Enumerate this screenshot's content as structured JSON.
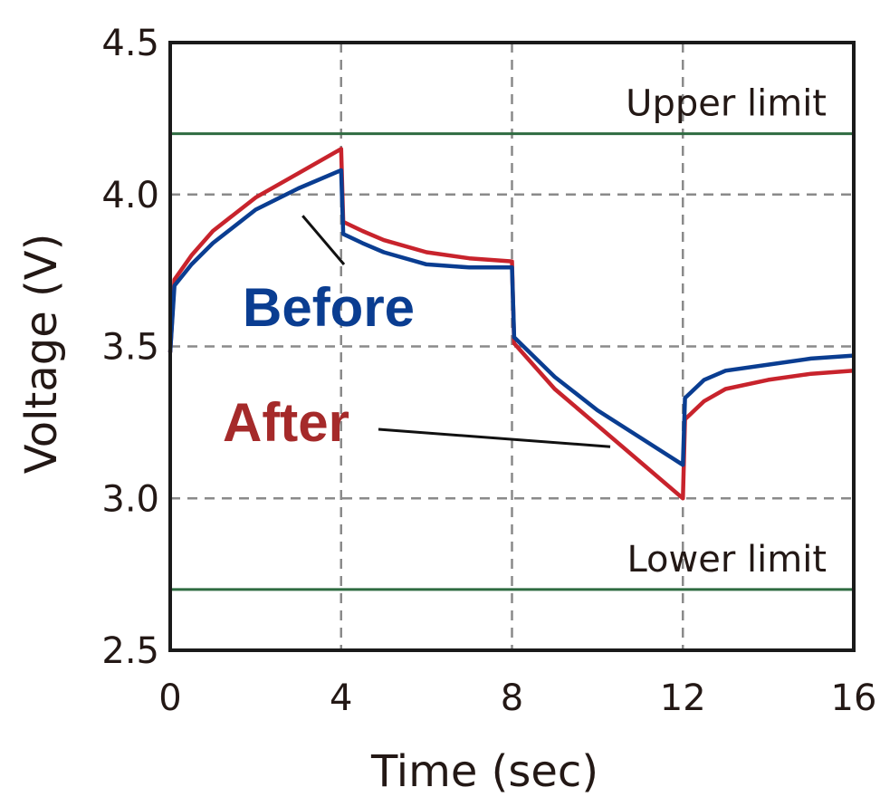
{
  "chart_data": {
    "type": "line",
    "xlabel": "Time (sec)",
    "ylabel": "Voltage (V)",
    "xlim": [
      0,
      16
    ],
    "ylim": [
      2.5,
      4.5
    ],
    "x_ticks": [
      0,
      4,
      8,
      12,
      16
    ],
    "y_ticks": [
      2.5,
      3.0,
      3.5,
      4.0,
      4.5
    ],
    "x_tick_labels": [
      "0",
      "4",
      "8",
      "12",
      "16"
    ],
    "y_tick_labels": [
      "2.5",
      "3.0",
      "3.5",
      "4.0",
      "4.5"
    ],
    "grid": "dashed at major ticks",
    "series": [
      {
        "name": "Before",
        "color": "#0a3d91",
        "points": [
          [
            0.0,
            3.48
          ],
          [
            0.1,
            3.7
          ],
          [
            0.5,
            3.77
          ],
          [
            1.0,
            3.84
          ],
          [
            2.0,
            3.95
          ],
          [
            3.0,
            4.02
          ],
          [
            4.0,
            4.08
          ],
          [
            4.05,
            3.87
          ],
          [
            4.5,
            3.84
          ],
          [
            5.0,
            3.81
          ],
          [
            6.0,
            3.77
          ],
          [
            7.0,
            3.76
          ],
          [
            8.0,
            3.76
          ],
          [
            8.05,
            3.53
          ],
          [
            9.0,
            3.4
          ],
          [
            10.0,
            3.29
          ],
          [
            11.0,
            3.2
          ],
          [
            12.0,
            3.11
          ],
          [
            12.05,
            3.33
          ],
          [
            12.5,
            3.39
          ],
          [
            13.0,
            3.42
          ],
          [
            14.0,
            3.44
          ],
          [
            15.0,
            3.46
          ],
          [
            16.0,
            3.47
          ]
        ]
      },
      {
        "name": "After",
        "color": "#c8232c",
        "points": [
          [
            0.0,
            3.48
          ],
          [
            0.1,
            3.72
          ],
          [
            0.5,
            3.8
          ],
          [
            1.0,
            3.88
          ],
          [
            2.0,
            3.99
          ],
          [
            3.0,
            4.07
          ],
          [
            4.0,
            4.15
          ],
          [
            4.05,
            3.91
          ],
          [
            4.5,
            3.88
          ],
          [
            5.0,
            3.85
          ],
          [
            6.0,
            3.81
          ],
          [
            7.0,
            3.79
          ],
          [
            8.0,
            3.78
          ],
          [
            8.05,
            3.51
          ],
          [
            9.0,
            3.36
          ],
          [
            10.0,
            3.24
          ],
          [
            11.0,
            3.12
          ],
          [
            12.0,
            3.0
          ],
          [
            12.05,
            3.26
          ],
          [
            12.5,
            3.32
          ],
          [
            13.0,
            3.36
          ],
          [
            14.0,
            3.39
          ],
          [
            15.0,
            3.41
          ],
          [
            16.0,
            3.42
          ]
        ]
      }
    ],
    "reference_lines": [
      {
        "label": "Upper limit",
        "y": 4.2,
        "color": "#2e6b40"
      },
      {
        "label": "Lower limit",
        "y": 2.7,
        "color": "#2e6b40"
      }
    ],
    "annotations": [
      {
        "text": "Before",
        "color": "#0a3d91",
        "pointer": [
          3.1,
          3.93
        ]
      },
      {
        "text": "After",
        "color": "#a52a2a",
        "pointer": [
          10.3,
          3.17
        ]
      }
    ]
  }
}
